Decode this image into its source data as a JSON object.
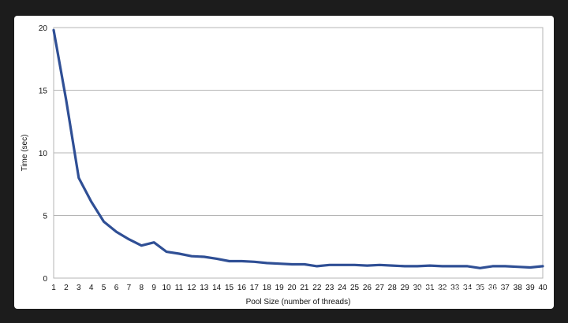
{
  "chart_data": {
    "type": "line",
    "title": "",
    "xlabel": "Pool Size (number of threads)",
    "ylabel": "Time (sec)",
    "xlim": [
      1,
      40
    ],
    "ylim": [
      0,
      20
    ],
    "yticks": [
      0,
      5,
      10,
      15,
      20
    ],
    "grid": "horizontal",
    "legend": "none",
    "line_color": "#2f4f95",
    "x": [
      1,
      2,
      3,
      4,
      5,
      6,
      7,
      8,
      9,
      10,
      11,
      12,
      13,
      14,
      15,
      16,
      17,
      18,
      19,
      20,
      21,
      22,
      23,
      24,
      25,
      26,
      27,
      28,
      29,
      30,
      31,
      32,
      33,
      34,
      35,
      36,
      37,
      38,
      39,
      40
    ],
    "series": [
      {
        "values": [
          19.8,
          14.2,
          8.0,
          6.1,
          4.5,
          3.7,
          3.1,
          2.6,
          2.85,
          2.1,
          1.95,
          1.75,
          1.7,
          1.55,
          1.35,
          1.35,
          1.3,
          1.2,
          1.15,
          1.1,
          1.1,
          0.95,
          1.05,
          1.05,
          1.05,
          1.0,
          1.05,
          1.0,
          0.95,
          0.95,
          1.0,
          0.95,
          0.95,
          0.95,
          0.8,
          0.95,
          0.95,
          0.9,
          0.85,
          0.95
        ]
      }
    ]
  },
  "watermark": "知乎 @半夜敲代码"
}
